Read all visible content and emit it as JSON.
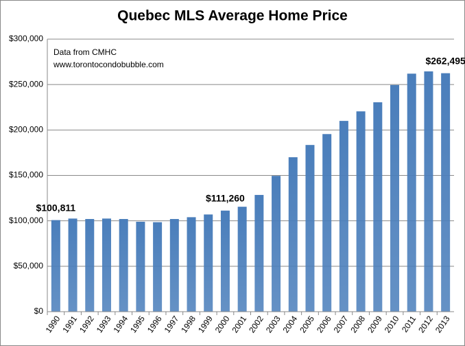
{
  "chart_data": {
    "type": "bar",
    "title": "Quebec MLS Average Home Price",
    "annotations": [
      "Data from CMHC",
      "www.torontocondobubble.com"
    ],
    "categories": [
      "1990",
      "1991",
      "1992",
      "1993",
      "1994",
      "1995",
      "1996",
      "1997",
      "1998",
      "1999",
      "2000",
      "2001",
      "2002",
      "2003",
      "2004",
      "2005",
      "2006",
      "2007",
      "2008",
      "2009",
      "2010",
      "2011",
      "2012",
      "2013"
    ],
    "values": [
      100811,
      102500,
      102000,
      102500,
      102000,
      99000,
      98500,
      102000,
      104000,
      107000,
      111260,
      115500,
      128500,
      149500,
      170000,
      183500,
      195500,
      210000,
      220500,
      230500,
      249500,
      262000,
      264500,
      262495
    ],
    "value_labels": [
      "$100,811",
      null,
      null,
      null,
      null,
      null,
      null,
      null,
      null,
      null,
      "$111,260",
      null,
      null,
      null,
      null,
      null,
      null,
      null,
      null,
      null,
      null,
      null,
      null,
      "$262,495"
    ],
    "color": "#4a7ebb",
    "ylim": [
      0,
      300000
    ],
    "yticks": [
      {
        "value": 0,
        "label": "$0"
      },
      {
        "value": 50000,
        "label": "$50,000"
      },
      {
        "value": 100000,
        "label": "$100,000"
      },
      {
        "value": 150000,
        "label": "$150,000"
      },
      {
        "value": 200000,
        "label": "$200,000"
      },
      {
        "value": 250000,
        "label": "$250,000"
      },
      {
        "value": 300000,
        "label": "$300,000"
      }
    ],
    "grid": true
  }
}
